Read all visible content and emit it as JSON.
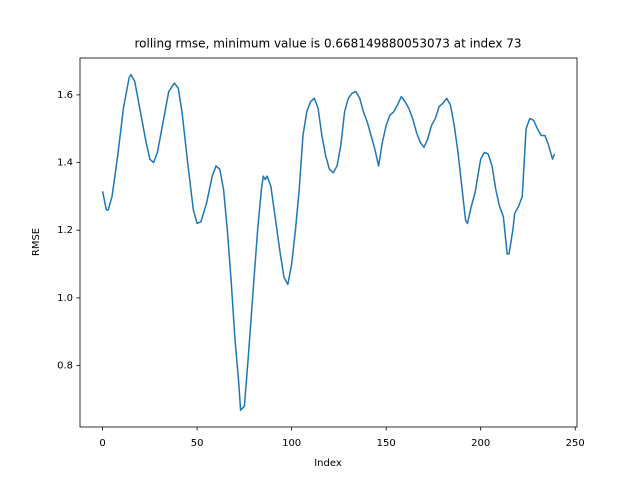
{
  "chart_data": {
    "type": "line",
    "title": "rolling rmse, minimum value is 0.668149880053073 at index 73",
    "x_label": "Index",
    "y_label": "RMSE",
    "x": [
      0,
      2,
      3,
      5,
      8,
      11,
      14,
      15,
      17,
      20,
      23,
      25,
      27,
      29,
      32,
      35,
      38,
      40,
      42,
      45,
      48,
      50,
      52,
      55,
      58,
      60,
      62,
      64,
      66,
      68,
      70,
      72,
      73,
      75,
      77,
      80,
      82,
      84,
      85,
      86,
      87,
      89,
      91,
      94,
      96,
      98,
      100,
      102,
      104,
      106,
      108,
      110,
      112,
      114,
      116,
      118,
      120,
      122,
      124,
      126,
      128,
      130,
      132,
      134,
      136,
      138,
      140,
      142,
      144,
      146,
      148,
      150,
      152,
      154,
      156,
      158,
      160,
      162,
      164,
      166,
      168,
      170,
      172,
      174,
      176,
      178,
      180,
      182,
      184,
      186,
      188,
      190,
      192,
      193,
      195,
      197,
      200,
      202,
      204,
      206,
      208,
      210,
      212,
      214,
      215,
      217,
      218,
      220,
      222,
      223,
      224,
      226,
      228,
      230,
      232,
      234,
      236,
      238,
      239
    ],
    "series": [
      {
        "name": "RMSE",
        "color": "#1f77b4",
        "values": [
          1.315,
          1.26,
          1.26,
          1.3,
          1.42,
          1.56,
          1.65,
          1.66,
          1.64,
          1.55,
          1.46,
          1.41,
          1.4,
          1.43,
          1.52,
          1.61,
          1.635,
          1.62,
          1.55,
          1.4,
          1.26,
          1.22,
          1.225,
          1.28,
          1.36,
          1.39,
          1.38,
          1.32,
          1.2,
          1.05,
          0.88,
          0.75,
          0.668149880053073,
          0.68,
          0.82,
          1.05,
          1.2,
          1.32,
          1.36,
          1.35,
          1.36,
          1.33,
          1.25,
          1.13,
          1.06,
          1.04,
          1.1,
          1.2,
          1.32,
          1.48,
          1.55,
          1.58,
          1.59,
          1.56,
          1.48,
          1.42,
          1.38,
          1.37,
          1.39,
          1.45,
          1.55,
          1.59,
          1.605,
          1.61,
          1.59,
          1.55,
          1.52,
          1.48,
          1.44,
          1.39,
          1.46,
          1.51,
          1.54,
          1.55,
          1.57,
          1.595,
          1.58,
          1.56,
          1.53,
          1.49,
          1.46,
          1.445,
          1.47,
          1.51,
          1.53,
          1.565,
          1.575,
          1.59,
          1.57,
          1.51,
          1.43,
          1.33,
          1.23,
          1.22,
          1.27,
          1.31,
          1.41,
          1.43,
          1.425,
          1.39,
          1.32,
          1.27,
          1.24,
          1.13,
          1.13,
          1.2,
          1.25,
          1.27,
          1.3,
          1.4,
          1.5,
          1.53,
          1.525,
          1.5,
          1.48,
          1.48,
          1.45,
          1.41,
          1.425
        ]
      }
    ],
    "xlim": [
      -11.95,
      250.95
    ],
    "ylim": [
      0.6185,
      1.709
    ],
    "xticks": [
      0,
      50,
      100,
      150,
      200,
      250
    ],
    "yticks": [
      0.8,
      {
        "value": 1,
        "label": "1.0"
      },
      1.2,
      1.4,
      1.6
    ]
  }
}
